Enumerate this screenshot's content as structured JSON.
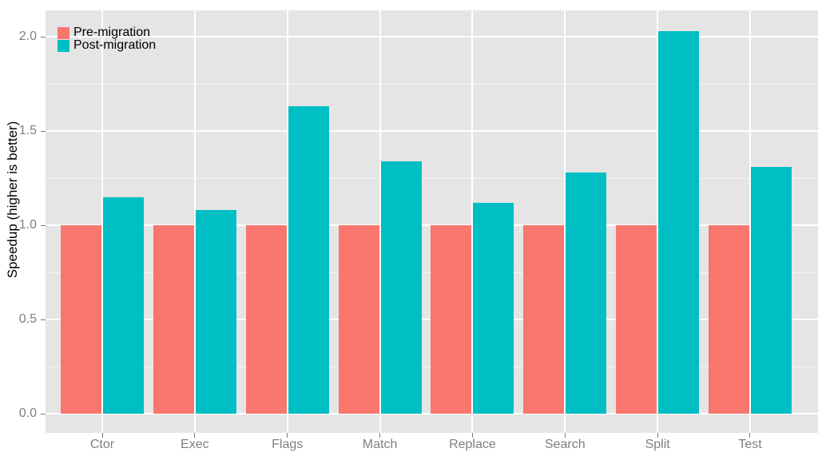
{
  "chart_data": {
    "type": "bar",
    "title": "",
    "xlabel": "",
    "ylabel": "Speedup (higher is better)",
    "categories": [
      "Ctor",
      "Exec",
      "Flags",
      "Match",
      "Replace",
      "Search",
      "Split",
      "Test"
    ],
    "series": [
      {
        "name": "Pre-migration",
        "color": "#F8766D",
        "values": [
          1.0,
          1.0,
          1.0,
          1.0,
          1.0,
          1.0,
          1.0,
          1.0
        ]
      },
      {
        "name": "Post-migration",
        "color": "#00BFC4",
        "values": [
          1.15,
          1.08,
          1.63,
          1.34,
          1.12,
          1.28,
          2.03,
          1.31
        ]
      }
    ],
    "ylim": [
      0,
      2.0
    ],
    "yticks": [
      0.0,
      0.5,
      1.0,
      1.5,
      2.0
    ],
    "ytick_labels": [
      "0.0",
      "0.5",
      "1.0",
      "1.5",
      "2.0"
    ],
    "minor_yticks": [
      0.25,
      0.75,
      1.25,
      1.75
    ],
    "grid": true,
    "legend_position": "top-left-inside",
    "colors": {
      "panel_background": "#E5E5E5",
      "major_grid": "#FFFFFF",
      "minor_grid": "rgba(255,255,255,0.6)",
      "tick_label": "#7f7f7f",
      "tick_mark": "#777777",
      "axis_title": "#000000"
    }
  }
}
